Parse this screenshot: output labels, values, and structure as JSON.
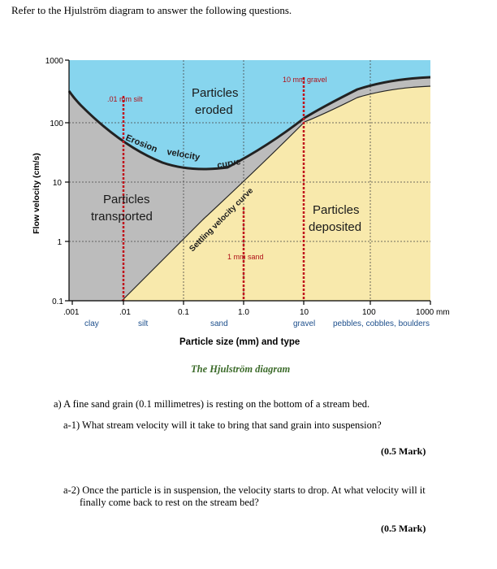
{
  "intro": "Refer to the Hjulström diagram to answer the following questions.",
  "diagram": {
    "y_axis_label": "Flow velocity (cm/s)",
    "y_ticks": [
      "1000",
      "100",
      "10",
      "1",
      "0.1"
    ],
    "x_ticks": [
      ".001",
      ".01",
      "0.1",
      "1.0",
      "10",
      "100",
      "1000 mm"
    ],
    "x_types": [
      "clay",
      "silt",
      "sand",
      "gravel",
      "pebbles, cobbles, boulders"
    ],
    "x_axis_label": "Particle size (mm) and type",
    "caption": "The Hjulström diagram",
    "regions": {
      "eroded": [
        "Particles",
        "eroded"
      ],
      "transported": [
        "Particles",
        "transported"
      ],
      "deposited": [
        "Particles",
        "deposited"
      ]
    },
    "curves": {
      "erosion": [
        "Erosion",
        "velocity",
        "curve"
      ],
      "settling": "Settling velocity curve"
    },
    "markers": {
      "silt": ".01 mm silt",
      "sand": "1 mm sand",
      "gravel": "10 mm gravel"
    },
    "colors": {
      "eroded": "#87d5ee",
      "transported": "#bcbcbc",
      "deposited": "#f8e9ac",
      "marker": "#c0141c"
    }
  },
  "questions": {
    "a": "a)  A fine sand grain (0.1 millimetres) is resting on the bottom of a stream bed.",
    "a1": "a-1) What stream velocity will it take to bring that sand grain into suspension?",
    "a1_mark": "(0.5 Mark)",
    "a2_line1": "a-2) Once the particle is in suspension, the velocity starts to drop. At what velocity will it",
    "a2_line2": "finally come back to rest on the stream bed?",
    "a2_mark": "(0.5 Mark)"
  }
}
